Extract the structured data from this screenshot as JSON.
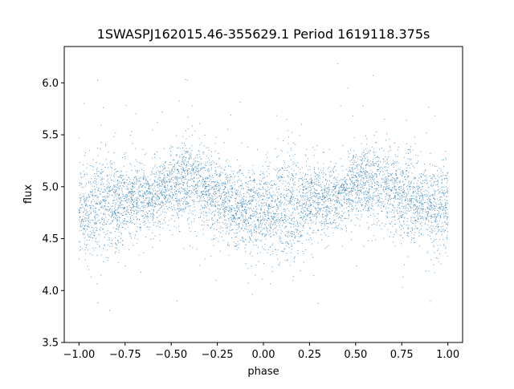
{
  "chart_data": {
    "type": "scatter",
    "title": "1SWASPJ162015.46-355629.1 Period 1619118.375s",
    "xlabel": "phase",
    "ylabel": "flux",
    "xlim": [
      -1.08,
      1.08
    ],
    "ylim": [
      3.5,
      6.35
    ],
    "xticks": [
      -1.0,
      -0.75,
      -0.5,
      -0.25,
      0.0,
      0.25,
      0.5,
      0.75,
      1.0
    ],
    "xtick_labels": [
      "−1.00",
      "−0.75",
      "−0.50",
      "−0.25",
      "0.00",
      "0.25",
      "0.50",
      "0.75",
      "1.00"
    ],
    "yticks": [
      3.5,
      4.0,
      4.5,
      5.0,
      5.5,
      6.0
    ],
    "ytick_labels": [
      "3.5",
      "4.0",
      "4.5",
      "5.0",
      "5.5",
      "6.0"
    ],
    "grid": false,
    "series_color": "#1f77b4",
    "profile": {
      "phase": [
        0.0,
        0.05,
        0.1,
        0.15,
        0.2,
        0.25,
        0.3,
        0.35,
        0.4,
        0.45,
        0.5,
        0.55,
        0.6,
        0.65,
        0.7,
        0.75,
        0.8,
        0.85,
        0.9,
        0.95,
        1.0
      ],
      "flux_center": [
        4.8,
        4.78,
        4.82,
        4.83,
        4.82,
        4.85,
        4.9,
        4.88,
        4.92,
        4.95,
        5.02,
        5.05,
        5.03,
        5.02,
        4.97,
        4.92,
        4.87,
        4.85,
        4.8,
        4.78,
        4.8
      ],
      "flux_spread": [
        0.22,
        0.22,
        0.25,
        0.28,
        0.22,
        0.18,
        0.18,
        0.17,
        0.16,
        0.16,
        0.17,
        0.2,
        0.2,
        0.2,
        0.2,
        0.2,
        0.2,
        0.19,
        0.2,
        0.22,
        0.22
      ]
    }
  }
}
